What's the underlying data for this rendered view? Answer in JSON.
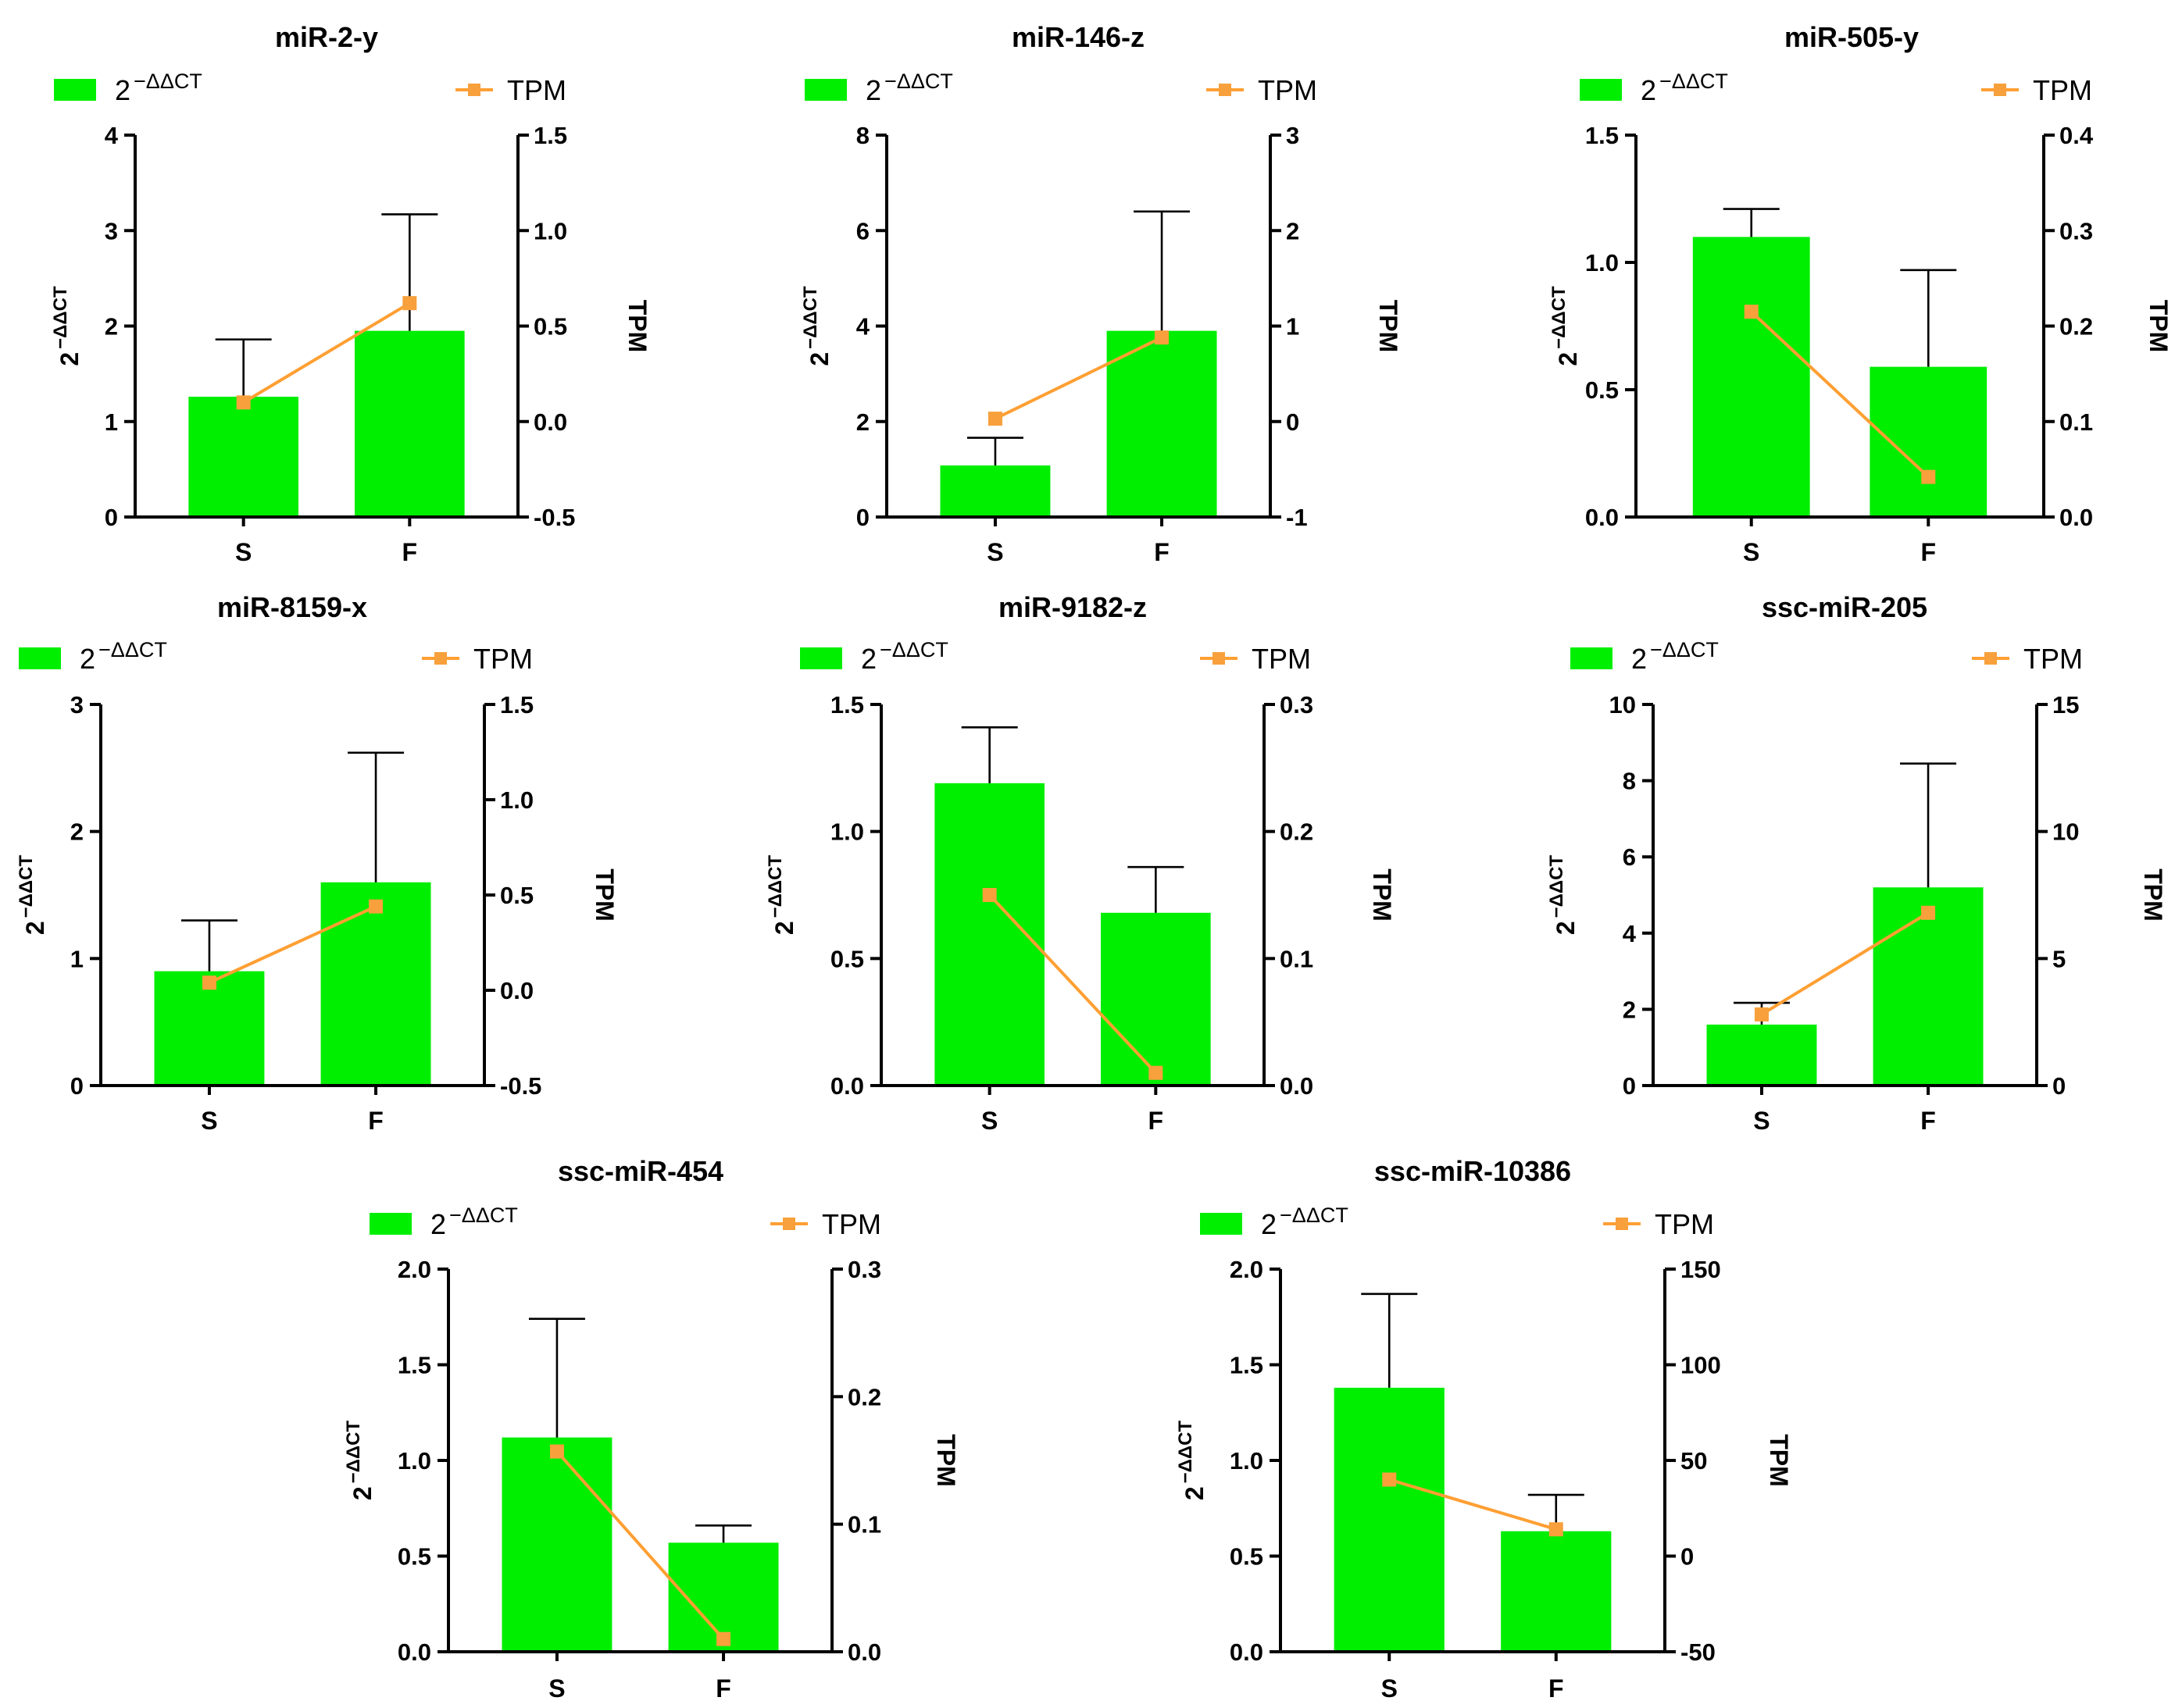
{
  "legend": {
    "bar_base": "2",
    "bar_exp": "−ΔΔCT",
    "line_label": "TPM"
  },
  "colors": {
    "bar": "#00ee00",
    "line": "#ff9f33",
    "marker": "#f7a03c",
    "axis": "#000000"
  },
  "chart_data": [
    {
      "type": "bar+line",
      "title": "miR-2-y",
      "categories": [
        "S",
        "F"
      ],
      "bar_values": [
        1.26,
        1.95
      ],
      "bar_error": [
        0.6,
        1.22
      ],
      "line_values": [
        0.1,
        0.62
      ],
      "ylabel_left_base": "2",
      "ylabel_left_exp": "−ΔΔCT",
      "ylabel_right": "TPM",
      "ylim_left": [
        0,
        4
      ],
      "yticks_left": [
        "0",
        "1",
        "2",
        "3",
        "4"
      ],
      "ylim_right": [
        -0.5,
        1.5
      ],
      "yticks_right": [
        "-0.5",
        "0.0",
        "0.5",
        "1.0",
        "1.5"
      ]
    },
    {
      "type": "bar+line",
      "title": "miR-146-z",
      "categories": [
        "S",
        "F"
      ],
      "bar_values": [
        1.08,
        3.9
      ],
      "bar_error": [
        0.58,
        2.5
      ],
      "line_values": [
        0.03,
        0.88
      ],
      "ylabel_left_base": "2",
      "ylabel_left_exp": "−ΔΔCT",
      "ylabel_right": "TPM",
      "ylim_left": [
        0,
        8
      ],
      "yticks_left": [
        "0",
        "2",
        "4",
        "6",
        "8"
      ],
      "ylim_right": [
        -1,
        3
      ],
      "yticks_right": [
        "-1",
        "0",
        "1",
        "2",
        "3"
      ]
    },
    {
      "type": "bar+line",
      "title": "miR-505-y",
      "categories": [
        "S",
        "F"
      ],
      "bar_values": [
        1.1,
        0.59
      ],
      "bar_error": [
        0.11,
        0.38
      ],
      "line_values": [
        0.215,
        0.042
      ],
      "ylabel_left_base": "2",
      "ylabel_left_exp": "−ΔΔCT",
      "ylabel_right": "TPM",
      "ylim_left": [
        0,
        1.5
      ],
      "yticks_left": [
        "0.0",
        "0.5",
        "1.0",
        "1.5"
      ],
      "ylim_right": [
        0,
        0.4
      ],
      "yticks_right": [
        "0.0",
        "0.1",
        "0.2",
        "0.3",
        "0.4"
      ]
    },
    {
      "type": "bar+line",
      "title": "miR-8159-x",
      "categories": [
        "S",
        "F"
      ],
      "bar_values": [
        0.9,
        1.6
      ],
      "bar_error": [
        0.4,
        1.02
      ],
      "line_values": [
        0.04,
        0.44
      ],
      "ylabel_left_base": "2",
      "ylabel_left_exp": "−ΔΔCT",
      "ylabel_right": "TPM",
      "ylim_left": [
        0,
        3
      ],
      "yticks_left": [
        "0",
        "1",
        "2",
        "3"
      ],
      "ylim_right": [
        -0.5,
        1.5
      ],
      "yticks_right": [
        "-0.5",
        "0.0",
        "0.5",
        "1.0",
        "1.5"
      ]
    },
    {
      "type": "bar+line",
      "title": "miR-9182-z",
      "categories": [
        "S",
        "F"
      ],
      "bar_values": [
        1.19,
        0.68
      ],
      "bar_error": [
        0.22,
        0.18
      ],
      "line_values": [
        0.15,
        0.01
      ],
      "ylabel_left_base": "2",
      "ylabel_left_exp": "−ΔΔCT",
      "ylabel_right": "TPM",
      "ylim_left": [
        0,
        1.5
      ],
      "yticks_left": [
        "0.0",
        "0.5",
        "1.0",
        "1.5"
      ],
      "ylim_right": [
        0,
        0.3
      ],
      "yticks_right": [
        "0.0",
        "0.1",
        "0.2",
        "0.3"
      ]
    },
    {
      "type": "bar+line",
      "title": "ssc-miR-205",
      "categories": [
        "S",
        "F"
      ],
      "bar_values": [
        1.6,
        5.2
      ],
      "bar_error": [
        0.57,
        3.25
      ],
      "line_values": [
        2.8,
        6.8
      ],
      "ylabel_left_base": "2",
      "ylabel_left_exp": "−ΔΔCT",
      "ylabel_right": "TPM",
      "ylim_left": [
        0,
        10
      ],
      "yticks_left": [
        "0",
        "2",
        "4",
        "6",
        "8",
        "10"
      ],
      "ylim_right": [
        0,
        15
      ],
      "yticks_right": [
        "0",
        "5",
        "10",
        "15"
      ]
    },
    {
      "type": "bar+line",
      "title": "ssc-miR-454",
      "categories": [
        "S",
        "F"
      ],
      "bar_values": [
        1.12,
        0.57
      ],
      "bar_error": [
        0.62,
        0.09
      ],
      "line_values": [
        0.157,
        0.01
      ],
      "ylabel_left_base": "2",
      "ylabel_left_exp": "−ΔΔCT",
      "ylabel_right": "TPM",
      "ylim_left": [
        0,
        2
      ],
      "yticks_left": [
        "0.0",
        "0.5",
        "1.0",
        "1.5",
        "2.0"
      ],
      "ylim_right": [
        0,
        0.3
      ],
      "yticks_right": [
        "0.0",
        "0.1",
        "0.2",
        "0.3"
      ]
    },
    {
      "type": "bar+line",
      "title": "ssc-miR-10386",
      "categories": [
        "S",
        "F"
      ],
      "bar_values": [
        1.38,
        0.63
      ],
      "bar_error": [
        0.49,
        0.19
      ],
      "line_values": [
        40,
        14
      ],
      "ylabel_left_base": "2",
      "ylabel_left_exp": "−ΔΔCT",
      "ylabel_right": "TPM",
      "ylim_left": [
        0,
        2
      ],
      "yticks_left": [
        "0.0",
        "0.5",
        "1.0",
        "1.5",
        "2.0"
      ],
      "ylim_right": [
        -50,
        150
      ],
      "yticks_right": [
        "-50",
        "0",
        "50",
        "100",
        "150"
      ]
    }
  ]
}
